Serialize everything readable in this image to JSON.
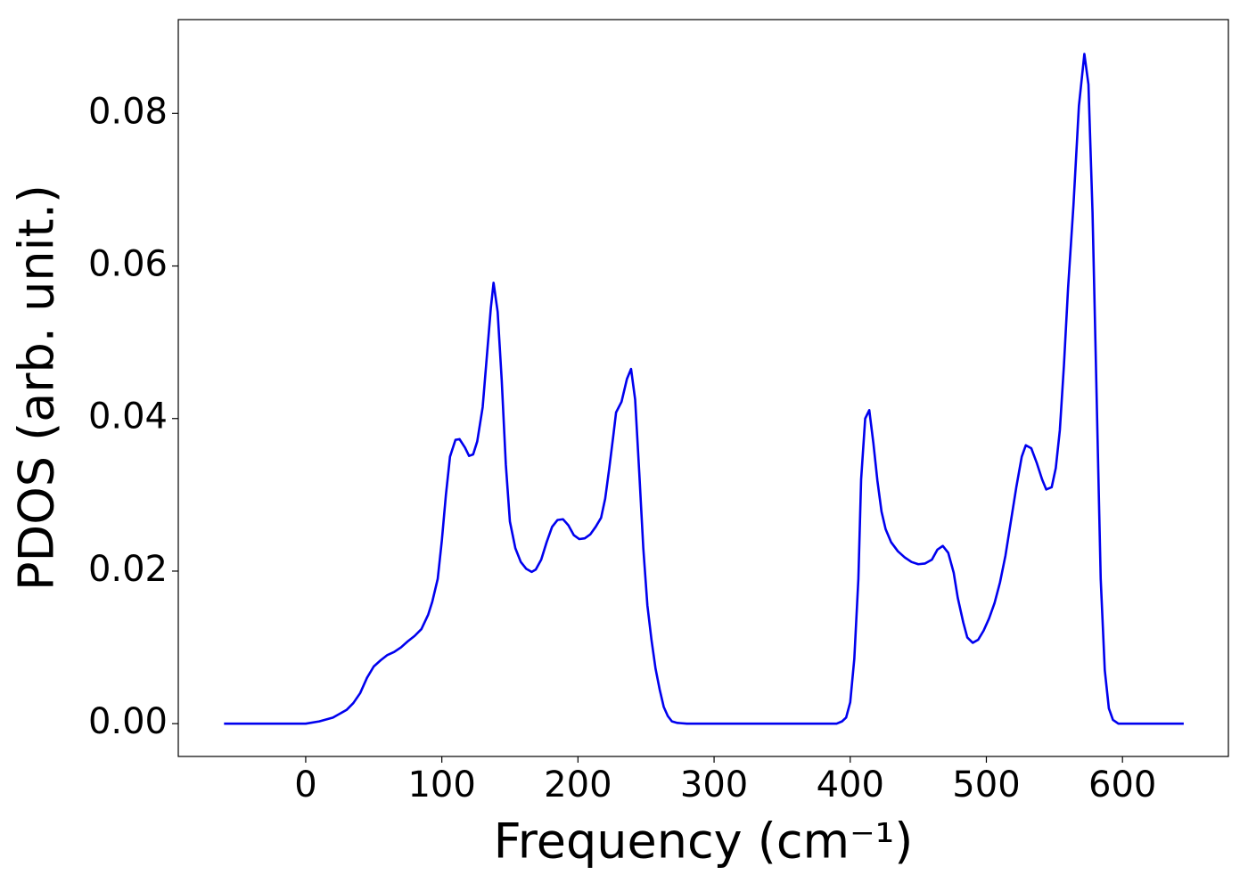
{
  "chart_data": {
    "type": "line",
    "x_label": "Frequency (cm⁻¹)",
    "y_label": "PDOS (arb. unit.)",
    "x": [
      -60,
      -30,
      0,
      10,
      20,
      30,
      35,
      40,
      45,
      50,
      55,
      60,
      65,
      70,
      75,
      80,
      85,
      90,
      93,
      97,
      100,
      103,
      106,
      110,
      113,
      117,
      120,
      123,
      126,
      130,
      133,
      136,
      138,
      141,
      144,
      147,
      150,
      154,
      158,
      162,
      166,
      169,
      173,
      177,
      181,
      185,
      189,
      193,
      197,
      201,
      205,
      209,
      213,
      217,
      220,
      223,
      226,
      228,
      232,
      236,
      239,
      242,
      245,
      248,
      251,
      254,
      257,
      260,
      263,
      266,
      269,
      273,
      280,
      300,
      390,
      394,
      397,
      400,
      403,
      406,
      408,
      411,
      414,
      417,
      420,
      423,
      426,
      430,
      435,
      440,
      445,
      450,
      455,
      460,
      464,
      468,
      472,
      476,
      479,
      483,
      486,
      490,
      494,
      498,
      502,
      506,
      510,
      514,
      518,
      522,
      526,
      529,
      533,
      537,
      541,
      544,
      548,
      551,
      554,
      557,
      560,
      564,
      568,
      572,
      575,
      578,
      581,
      584,
      587,
      590,
      593,
      597,
      620,
      645
    ],
    "series": [
      {
        "name": "PDOS",
        "color": "#0000ee",
        "values": [
          0,
          0,
          0,
          0.0003,
          0.0008,
          0.0018,
          0.0027,
          0.004,
          0.006,
          0.0075,
          0.0083,
          0.009,
          0.0094,
          0.01,
          0.0108,
          0.0115,
          0.0124,
          0.0143,
          0.016,
          0.019,
          0.024,
          0.03,
          0.035,
          0.0372,
          0.0373,
          0.0362,
          0.0351,
          0.0353,
          0.037,
          0.0415,
          0.048,
          0.0545,
          0.0578,
          0.054,
          0.045,
          0.034,
          0.0265,
          0.023,
          0.0212,
          0.0203,
          0.0199,
          0.0202,
          0.0215,
          0.0238,
          0.0258,
          0.0267,
          0.0268,
          0.026,
          0.0247,
          0.0242,
          0.0243,
          0.0248,
          0.0258,
          0.027,
          0.0295,
          0.0335,
          0.0378,
          0.0408,
          0.0422,
          0.0452,
          0.0465,
          0.0425,
          0.033,
          0.023,
          0.0155,
          0.011,
          0.0072,
          0.0045,
          0.0022,
          0.001,
          0.0003,
          0.0001,
          0,
          0,
          0,
          0.0003,
          0.0008,
          0.0028,
          0.0085,
          0.019,
          0.032,
          0.04,
          0.0411,
          0.0368,
          0.0318,
          0.0278,
          0.0255,
          0.0238,
          0.0226,
          0.0218,
          0.0212,
          0.0209,
          0.021,
          0.0215,
          0.0228,
          0.0233,
          0.0224,
          0.0198,
          0.0165,
          0.0133,
          0.0113,
          0.0106,
          0.011,
          0.0122,
          0.0138,
          0.0158,
          0.0185,
          0.022,
          0.0265,
          0.031,
          0.035,
          0.0365,
          0.0361,
          0.0342,
          0.032,
          0.0307,
          0.031,
          0.0335,
          0.0385,
          0.047,
          0.057,
          0.068,
          0.081,
          0.0878,
          0.0838,
          0.067,
          0.043,
          0.019,
          0.007,
          0.002,
          0.0005,
          0,
          0,
          0
        ]
      }
    ],
    "xlim": [
      -93.6,
      677.8
    ],
    "ylim": [
      -0.0043,
      0.0923
    ],
    "xticks": [
      0,
      100,
      200,
      300,
      400,
      500,
      600
    ],
    "yticks": [
      {
        "value": 0,
        "label": "0.00"
      },
      {
        "value": 0.02,
        "label": "0.02"
      },
      {
        "value": 0.04,
        "label": "0.04"
      },
      {
        "value": 0.06,
        "label": "0.06"
      },
      {
        "value": 0.08,
        "label": "0.08"
      }
    ],
    "grid": false
  }
}
